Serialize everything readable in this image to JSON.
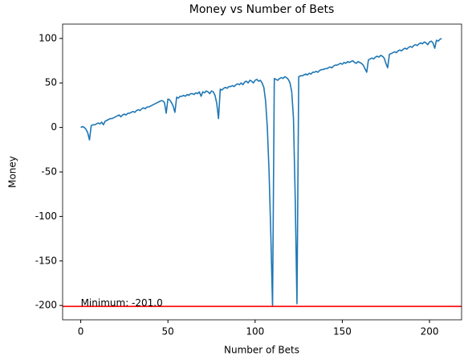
{
  "chart_data": {
    "type": "line",
    "title": "Money vs Number of Bets",
    "xlabel": "Number of Bets",
    "ylabel": "Money",
    "color": "#1f77b4",
    "x": [
      0,
      1,
      2,
      3,
      4,
      5,
      6,
      7,
      8,
      9,
      10,
      11,
      12,
      13,
      14,
      15,
      16,
      17,
      18,
      19,
      20,
      21,
      22,
      23,
      24,
      25,
      26,
      27,
      28,
      29,
      30,
      31,
      32,
      33,
      34,
      35,
      36,
      37,
      38,
      39,
      40,
      41,
      42,
      43,
      44,
      45,
      46,
      47,
      48,
      49,
      50,
      51,
      52,
      53,
      54,
      55,
      56,
      57,
      58,
      59,
      60,
      61,
      62,
      63,
      64,
      65,
      66,
      67,
      68,
      69,
      70,
      71,
      72,
      73,
      74,
      75,
      76,
      77,
      78,
      79,
      80,
      81,
      82,
      83,
      84,
      85,
      86,
      87,
      88,
      89,
      90,
      91,
      92,
      93,
      94,
      95,
      96,
      97,
      98,
      99,
      100,
      101,
      102,
      103,
      104,
      105,
      106,
      107,
      108,
      109,
      110,
      111,
      112,
      113,
      114,
      115,
      116,
      117,
      118,
      119,
      120,
      121,
      122,
      123,
      124,
      125,
      126,
      127,
      128,
      129,
      130,
      131,
      132,
      133,
      134,
      135,
      136,
      137,
      138,
      139,
      140,
      141,
      142,
      143,
      144,
      145,
      146,
      147,
      148,
      149,
      150,
      151,
      152,
      153,
      154,
      155,
      156,
      157,
      158,
      159,
      160,
      161,
      162,
      163,
      164,
      165,
      166,
      167,
      168,
      169,
      170,
      171,
      172,
      173,
      174,
      175,
      176,
      177,
      178,
      179,
      180,
      181,
      182,
      183,
      184,
      185,
      186,
      187,
      188,
      189,
      190,
      191,
      192,
      193,
      194,
      195,
      196,
      197,
      198,
      199,
      200,
      201,
      202,
      203,
      204,
      205,
      206,
      207
    ],
    "values": [
      0,
      1,
      0,
      -2,
      -6,
      -14,
      2,
      3,
      3,
      4,
      5,
      4,
      6,
      3,
      7,
      8,
      9,
      10,
      10,
      11,
      12,
      13,
      14,
      12,
      14,
      15,
      14,
      16,
      16,
      17,
      18,
      17,
      19,
      20,
      19,
      21,
      22,
      21,
      23,
      23,
      24,
      25,
      26,
      27,
      28,
      29,
      30,
      30,
      28,
      16,
      32,
      31,
      28,
      24,
      17,
      34,
      33,
      35,
      35,
      36,
      35,
      37,
      36,
      38,
      38,
      37,
      39,
      38,
      40,
      35,
      40,
      39,
      41,
      40,
      38,
      41,
      40,
      36,
      27,
      10,
      43,
      42,
      44,
      45,
      44,
      46,
      46,
      47,
      46,
      48,
      49,
      48,
      50,
      48,
      51,
      52,
      50,
      53,
      52,
      50,
      53,
      54,
      52,
      53,
      50,
      45,
      30,
      0,
      -50,
      -120,
      -201,
      55,
      54,
      53,
      55,
      56,
      55,
      57,
      56,
      54,
      50,
      40,
      10,
      -80,
      -198,
      57,
      58,
      58,
      59,
      60,
      59,
      61,
      60,
      62,
      62,
      63,
      62,
      64,
      65,
      65,
      66,
      66,
      67,
      68,
      67,
      69,
      70,
      70,
      71,
      72,
      71,
      73,
      72,
      74,
      73,
      74,
      75,
      73,
      72,
      74,
      73,
      72,
      70,
      66,
      62,
      76,
      77,
      78,
      77,
      79,
      80,
      79,
      81,
      80,
      78,
      72,
      67,
      82,
      83,
      84,
      85,
      84,
      86,
      87,
      86,
      88,
      89,
      88,
      90,
      91,
      90,
      92,
      93,
      92,
      94,
      95,
      94,
      96,
      95,
      93,
      96,
      97,
      95,
      89,
      98,
      97,
      99,
      100
    ],
    "xlim": [
      -10.4,
      218.4
    ],
    "ylim": [
      -216.1,
      116.1
    ],
    "xticks": [
      0,
      50,
      100,
      150,
      200
    ],
    "yticks": [
      -200,
      -150,
      -100,
      -50,
      0,
      50,
      100
    ],
    "hline": {
      "value": -201,
      "color": "#ff0000"
    },
    "annotation": {
      "text": "Minimum: -201.0",
      "x": 0,
      "y": -201
    }
  }
}
